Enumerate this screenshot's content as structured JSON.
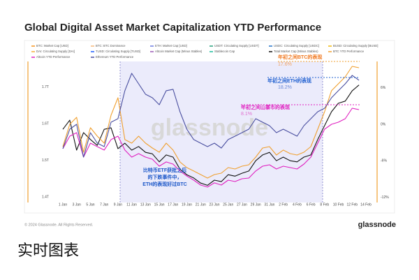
{
  "title": "Global Digital Asset Market Capitalization YTD Performance",
  "footer": {
    "copyright": "© 2024 Glassnode. All Rights Reserved.",
    "brand": "glassnode"
  },
  "caption": "实时图表",
  "chart_data": {
    "type": "line",
    "watermark": "glassnode",
    "categories": [
      "1 Jan",
      null,
      "3 Jan",
      null,
      "5 Jan",
      null,
      "7 Jan",
      null,
      "9 Jan",
      null,
      "11 Jan",
      null,
      "13 Jan",
      null,
      "15 Jan",
      null,
      "17 Jan",
      null,
      "19 Jan",
      null,
      "21 Jan",
      null,
      "23 Jan",
      null,
      "25 Jan",
      null,
      "27 Jan",
      null,
      "29 Jan",
      null,
      "31 Jan",
      null,
      "2 Feb",
      null,
      "4 Feb",
      null,
      "6 Feb",
      null,
      "8 Feb",
      null,
      "10 Feb",
      null,
      "12 Feb",
      null,
      "14 Feb"
    ],
    "ylim": [
      1.385,
      1.765
    ],
    "yticks": [
      {
        "value": 1.4,
        "label": "1.4T"
      },
      {
        "value": 1.5,
        "label": "1.5T"
      },
      {
        "value": 1.6,
        "label": "1.6T"
      },
      {
        "value": 1.7,
        "label": "1.7T"
      }
    ],
    "y2lim": [
      -12.85,
      10
    ],
    "y2ticks": [
      {
        "value": -12,
        "label": "-12%"
      },
      {
        "value": -6,
        "label": "-6%"
      },
      {
        "value": 0,
        "label": "0%"
      },
      {
        "value": 6,
        "label": "6%"
      }
    ],
    "other_legend": [
      {
        "name": "BTC: Market Cap [USD]",
        "color": "#f7931a"
      },
      {
        "name": "BTC: BTC Dominance",
        "color": "#f5b97a"
      },
      {
        "name": "ETH: Market Cap [USD]",
        "color": "#6c7ae0"
      },
      {
        "name": "USDT: Circulating Supply [USDT]",
        "color": "#26a17b"
      },
      {
        "name": "USDC: Circulating Supply [USDC]",
        "color": "#2775ca"
      },
      {
        "name": "BUSD: Circulating Supply [BUSD]",
        "color": "#f0b90b"
      },
      {
        "name": "DAI: Circulating Supply [DAI]",
        "color": "#f5ac37"
      },
      {
        "name": "TUSD: Circulating Supply [TUSD]",
        "color": "#1a5aff"
      },
      {
        "name": "Altcoin Market Cap (Minus Stables)",
        "color": "#9b59b6"
      },
      {
        "name": "Stablecoin Cap",
        "color": "#1abc9c"
      }
    ],
    "series": [
      {
        "name": "Total Market Cap (Minus Stables)",
        "color": "#111111",
        "values": [
          1.585,
          1.61,
          1.528,
          1.576,
          1.557,
          1.541,
          1.585,
          1.589,
          1.532,
          1.547,
          1.528,
          1.538,
          1.522,
          1.518,
          1.496,
          1.515,
          1.509,
          1.476,
          1.461,
          1.452,
          1.438,
          1.432,
          1.446,
          1.442,
          1.461,
          1.457,
          1.465,
          1.471,
          1.499,
          1.515,
          1.522,
          1.499,
          1.509,
          1.499,
          1.496,
          1.509,
          1.515,
          1.557,
          1.595,
          1.633,
          1.656,
          1.662,
          1.69,
          1.706,
          null
        ]
      },
      {
        "name": "BTC YTD Performance",
        "color": "#f0a030",
        "axis": "y2",
        "values": [
          -3.67,
          0,
          1.15,
          -4.59,
          -0.57,
          -1.95,
          -3.1,
          1.49,
          4.36,
          -2.52,
          -3.1,
          -1.95,
          -3.1,
          -3.9,
          -4.59,
          -3.1,
          -4.24,
          -6.19,
          -7.11,
          -7.68,
          -8.26,
          -8.83,
          -8.26,
          -8.03,
          -7.11,
          -7.34,
          -6.88,
          -6.65,
          -5.39,
          -3.9,
          -3.67,
          -5.05,
          -4.24,
          -4.82,
          -5.05,
          -4.59,
          -3.67,
          -0.8,
          2.06,
          5.51,
          6.65,
          7.8,
          9.52,
          9.29,
          null
        ]
      },
      {
        "name": "Altcoin YTD Performance",
        "color": "#e020c0",
        "axis": "y2",
        "values": [
          -4.01,
          -1.95,
          -1.38,
          -5.39,
          -3.1,
          -3.67,
          -4.24,
          -2.52,
          -1.95,
          -4.24,
          -5.39,
          -4.82,
          -5.39,
          -5.74,
          -6.88,
          -6.19,
          -6.54,
          -7.68,
          -8.49,
          -9.18,
          -9.98,
          -10.32,
          -9.63,
          -9.98,
          -9.18,
          -9.41,
          -8.95,
          -8.83,
          -7.68,
          -6.88,
          -6.65,
          -7.34,
          -6.88,
          -7.11,
          -7.34,
          -6.54,
          -5.39,
          -3.1,
          -0.8,
          0,
          0.34,
          0.92,
          2.64,
          2.41,
          null
        ]
      },
      {
        "name": "Ethereum YTD Performance",
        "color": "#4a4fa0",
        "axis": "y2",
        "values": [
          -4.01,
          -0.8,
          0,
          -5.39,
          -1.38,
          -3.1,
          -3.67,
          0.34,
          0.92,
          5.51,
          8.37,
          6.65,
          4.93,
          4.36,
          3.21,
          5.51,
          5.74,
          2.06,
          -0.8,
          -2.52,
          -3.1,
          -3.67,
          -3.1,
          -3.9,
          -2.52,
          -1.95,
          -1.38,
          -0.8,
          0.92,
          0.34,
          -0.23,
          -1.38,
          -0.8,
          -1.38,
          -1.95,
          -0.23,
          0.92,
          2.06,
          2.64,
          4.36,
          5.51,
          6.65,
          8.03,
          7.23,
          null
        ]
      }
    ],
    "annotations": [
      "年初之间BTC的表现",
      "17.6%",
      "年初之间ETH的表现",
      "18.2%",
      "年初之间山寨币的表现",
      "8.1%"
    ],
    "box_note": [
      "比特币ETF获批之后",
      "的下跌事件中，",
      "ETH的表现好过BTC"
    ]
  }
}
